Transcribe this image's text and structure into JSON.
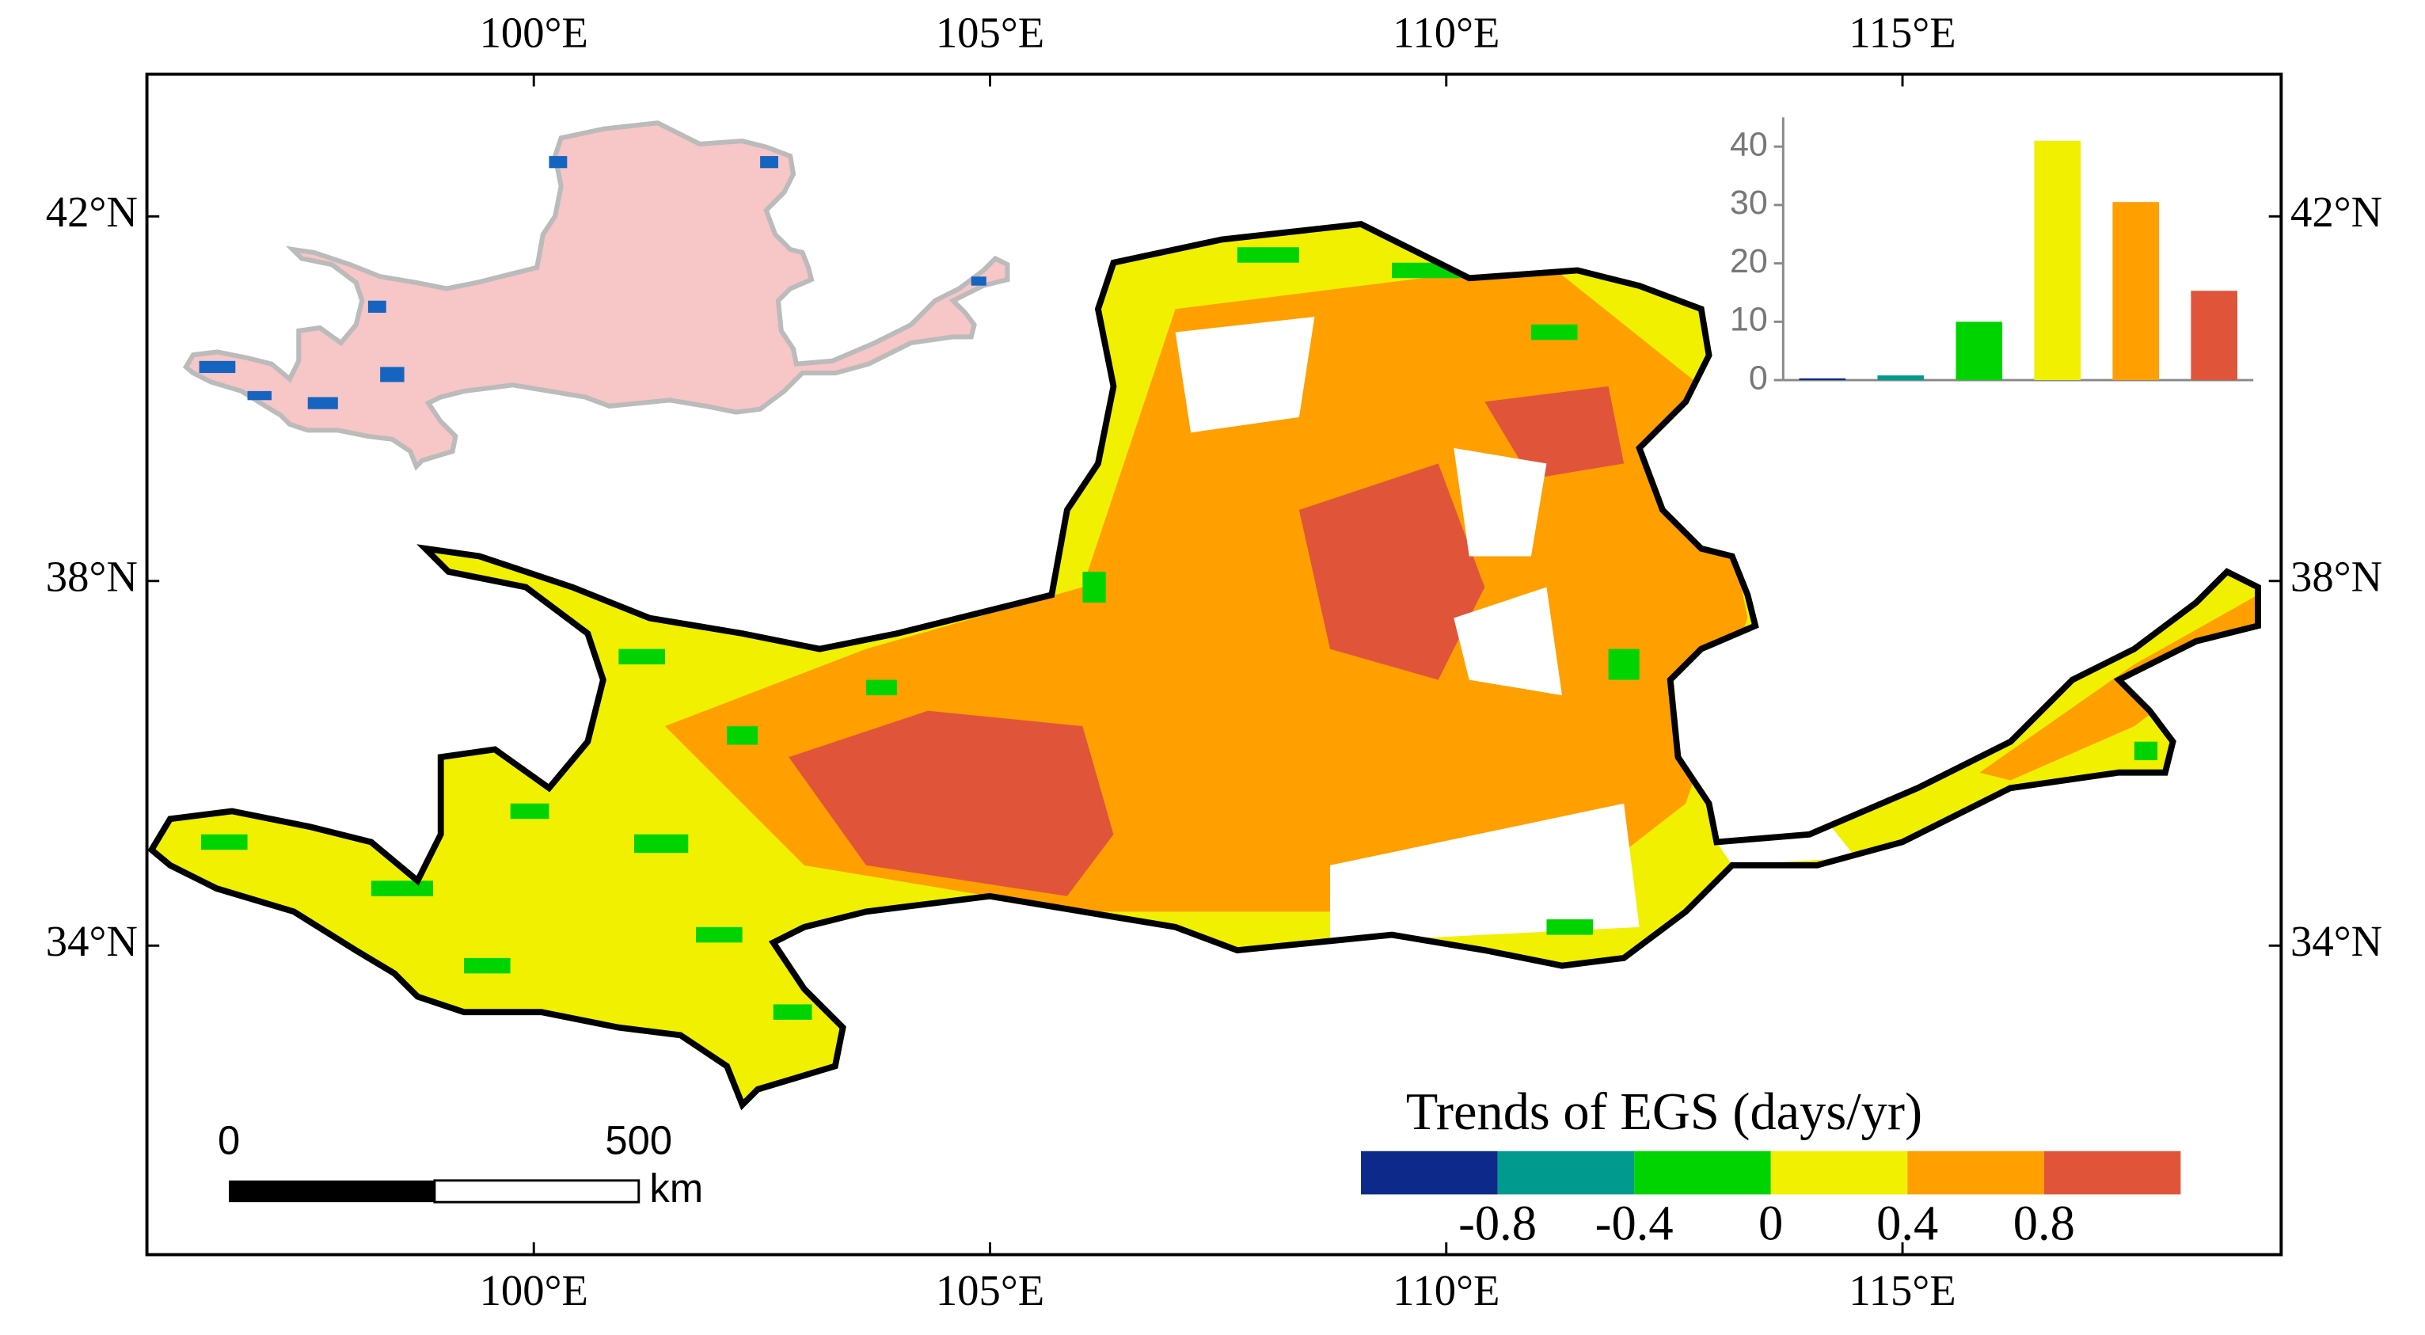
{
  "map": {
    "lonlim": [
      95.76,
      119.15
    ],
    "latlim": [
      30.61,
      43.56
    ],
    "lon_ticks": [
      {
        "value": 100,
        "label": "100°E"
      },
      {
        "value": 105,
        "label": "105°E"
      },
      {
        "value": 110,
        "label": "110°E"
      },
      {
        "value": 115,
        "label": "115°E"
      }
    ],
    "lat_ticks": [
      {
        "value": 42,
        "label": "42°N"
      },
      {
        "value": 38,
        "label": "38°N"
      },
      {
        "value": 34,
        "label": "34°N"
      }
    ],
    "legend": {
      "title": "Trends of EGS (days/yr)",
      "colors": [
        "#0d2a8a",
        "#009a8e",
        "#00d400",
        "#f0f000",
        "#ff9f00",
        "#e0553a"
      ],
      "labels": [
        "-0.8",
        "-0.4",
        "0",
        "0.4",
        "0.8"
      ]
    },
    "scale_bar": {
      "labels": [
        "0",
        "500"
      ],
      "unit": "km"
    }
  },
  "chart_data": {
    "type": "bar",
    "values": [
      0.3,
      0.8,
      10,
      41,
      30.5,
      15.3
    ],
    "colors": [
      "#0d2a8a",
      "#009a8e",
      "#00d400",
      "#f0f000",
      "#ff9f00",
      "#e0553a"
    ],
    "ylim": [
      0,
      45
    ],
    "yticks": [
      0,
      10,
      20,
      30,
      40
    ]
  }
}
